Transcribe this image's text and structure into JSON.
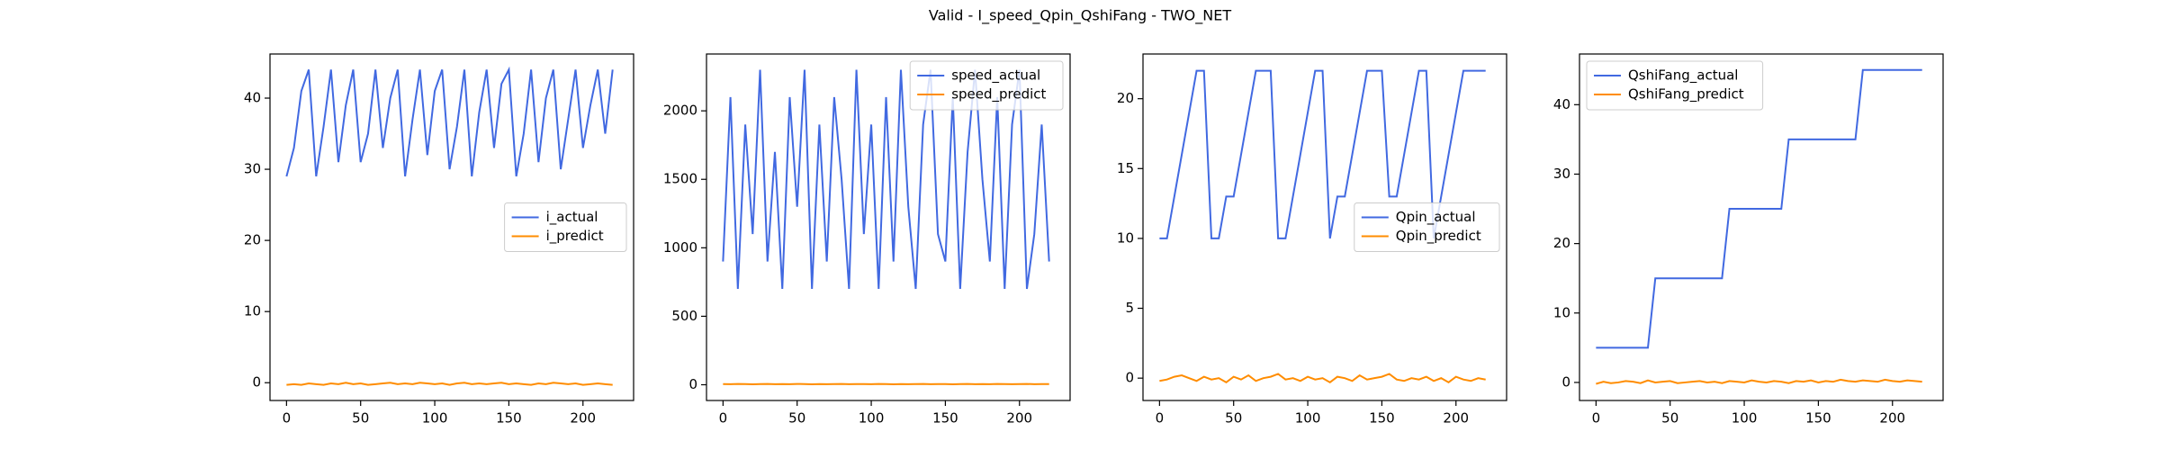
{
  "title": "Valid - I_speed_Qpin_QshiFang - TWO_NET",
  "chart_data": [
    {
      "type": "line",
      "legend": "center right",
      "x": [
        0,
        5,
        10,
        15,
        20,
        25,
        30,
        35,
        40,
        45,
        50,
        55,
        60,
        65,
        70,
        75,
        80,
        85,
        90,
        95,
        100,
        105,
        110,
        115,
        120,
        125,
        130,
        135,
        140,
        145,
        150,
        155,
        160,
        165,
        170,
        175,
        180,
        185,
        190,
        195,
        200,
        205,
        210,
        215,
        220
      ],
      "xlim": [
        -11.15,
        234.15
      ],
      "xticks": [
        0,
        50,
        100,
        150,
        200
      ],
      "ylim": [
        -2.5,
        46.2
      ],
      "yticks": [
        0,
        10,
        20,
        30,
        40
      ],
      "series": [
        {
          "name": "i_actual",
          "color": "#4169e1",
          "values": [
            29,
            33,
            41,
            44,
            29,
            36,
            44,
            31,
            39,
            44,
            31,
            35,
            44,
            33,
            40,
            44,
            29,
            37,
            44,
            32,
            41,
            44,
            30,
            36,
            44,
            29,
            38,
            44,
            33,
            42,
            44,
            29,
            35,
            44,
            31,
            40,
            44,
            30,
            37,
            44,
            33,
            39,
            44,
            35,
            44
          ]
        },
        {
          "name": "i_predict",
          "color": "#ff8c00",
          "values": [
            -0.3,
            -0.2,
            -0.3,
            -0.1,
            -0.2,
            -0.3,
            -0.1,
            -0.2,
            0,
            -0.2,
            -0.1,
            -0.3,
            -0.2,
            -0.1,
            0,
            -0.2,
            -0.1,
            -0.2,
            0,
            -0.1,
            -0.2,
            -0.1,
            -0.3,
            -0.1,
            0,
            -0.2,
            -0.1,
            -0.2,
            -0.1,
            0,
            -0.2,
            -0.1,
            -0.2,
            -0.3,
            -0.1,
            -0.2,
            0,
            -0.1,
            -0.2,
            -0.1,
            -0.3,
            -0.2,
            -0.1,
            -0.2,
            -0.3
          ]
        }
      ]
    },
    {
      "type": "line",
      "legend": "upper right",
      "x": [
        0,
        5,
        10,
        15,
        20,
        25,
        30,
        35,
        40,
        45,
        50,
        55,
        60,
        65,
        70,
        75,
        80,
        85,
        90,
        95,
        100,
        105,
        110,
        115,
        120,
        125,
        130,
        135,
        140,
        145,
        150,
        155,
        160,
        165,
        170,
        175,
        180,
        185,
        190,
        195,
        200,
        205,
        210,
        215,
        220
      ],
      "xlim": [
        -11.15,
        234.15
      ],
      "xticks": [
        0,
        50,
        100,
        150,
        200
      ],
      "ylim": [
        -115,
        2415
      ],
      "yticks": [
        0,
        500,
        1000,
        1500,
        2000
      ],
      "series": [
        {
          "name": "speed_actual",
          "color": "#4169e1",
          "values": [
            900,
            2100,
            700,
            1900,
            1100,
            2300,
            900,
            1700,
            700,
            2100,
            1300,
            2300,
            700,
            1900,
            900,
            2100,
            1500,
            700,
            2300,
            1100,
            1900,
            700,
            2100,
            900,
            2300,
            1300,
            700,
            1900,
            2300,
            1100,
            900,
            2100,
            700,
            1700,
            2300,
            1500,
            900,
            2100,
            700,
            1900,
            2300,
            700,
            1100,
            1900,
            900
          ]
        },
        {
          "name": "speed_predict",
          "color": "#ff8c00",
          "values": [
            5,
            4,
            6,
            5,
            3,
            5,
            6,
            4,
            5,
            4,
            6,
            5,
            3,
            5,
            4,
            5,
            6,
            4,
            5,
            5,
            4,
            6,
            5,
            3,
            5,
            4,
            5,
            6,
            4,
            5,
            5,
            3,
            5,
            6,
            4,
            5,
            4,
            6,
            5,
            4,
            5,
            6,
            4,
            5,
            5
          ]
        }
      ]
    },
    {
      "type": "line",
      "legend": "center right",
      "x": [
        0,
        5,
        10,
        15,
        20,
        25,
        30,
        35,
        40,
        45,
        50,
        55,
        60,
        65,
        70,
        75,
        80,
        85,
        90,
        95,
        100,
        105,
        110,
        115,
        120,
        125,
        130,
        135,
        140,
        145,
        150,
        155,
        160,
        165,
        170,
        175,
        180,
        185,
        190,
        195,
        200,
        205,
        210,
        215,
        220
      ],
      "xlim": [
        -11.15,
        234.15
      ],
      "xticks": [
        0,
        50,
        100,
        150,
        200
      ],
      "ylim": [
        -1.6,
        23.2
      ],
      "yticks": [
        0,
        5,
        10,
        15,
        20
      ],
      "series": [
        {
          "name": "Qpin_actual",
          "color": "#4169e1",
          "values": [
            10,
            10,
            13,
            16,
            19,
            22,
            22,
            10,
            10,
            13,
            13,
            16,
            19,
            22,
            22,
            22,
            10,
            10,
            13,
            16,
            19,
            22,
            22,
            10,
            13,
            13,
            16,
            19,
            22,
            22,
            22,
            13,
            13,
            16,
            19,
            22,
            22,
            10,
            13,
            16,
            19,
            22,
            22,
            22,
            22
          ]
        },
        {
          "name": "Qpin_predict",
          "color": "#ff8c00",
          "values": [
            -0.2,
            -0.1,
            0.1,
            0.2,
            0,
            -0.2,
            0.1,
            -0.1,
            0,
            -0.3,
            0.1,
            -0.1,
            0.2,
            -0.2,
            0,
            0.1,
            0.3,
            -0.1,
            0,
            -0.2,
            0.1,
            -0.1,
            0,
            -0.3,
            0.1,
            0,
            -0.2,
            0.2,
            -0.1,
            0,
            0.1,
            0.3,
            -0.1,
            -0.2,
            0,
            -0.1,
            0.1,
            -0.2,
            0,
            -0.3,
            0.1,
            -0.1,
            -0.2,
            0,
            -0.1
          ]
        }
      ]
    },
    {
      "type": "line",
      "legend": "upper left",
      "x": [
        0,
        5,
        10,
        15,
        20,
        25,
        30,
        35,
        40,
        45,
        50,
        55,
        60,
        65,
        70,
        75,
        80,
        85,
        90,
        95,
        100,
        105,
        110,
        115,
        120,
        125,
        130,
        135,
        140,
        145,
        150,
        155,
        160,
        165,
        170,
        175,
        180,
        185,
        190,
        195,
        200,
        205,
        210,
        215,
        220
      ],
      "xlim": [
        -11.15,
        234.15
      ],
      "xticks": [
        0,
        50,
        100,
        150,
        200
      ],
      "ylim": [
        -2.6,
        47.3
      ],
      "yticks": [
        0,
        10,
        20,
        30,
        40
      ],
      "series": [
        {
          "name": "QshiFang_actual",
          "color": "#4169e1",
          "values": [
            5,
            5,
            5,
            5,
            5,
            5,
            5,
            5,
            15,
            15,
            15,
            15,
            15,
            15,
            15,
            15,
            15,
            15,
            25,
            25,
            25,
            25,
            25,
            25,
            25,
            25,
            35,
            35,
            35,
            35,
            35,
            35,
            35,
            35,
            35,
            35,
            45,
            45,
            45,
            45,
            45,
            45,
            45,
            45,
            45
          ]
        },
        {
          "name": "QshiFang_predict",
          "color": "#ff8c00",
          "values": [
            -0.2,
            0.1,
            -0.1,
            0,
            0.2,
            0.1,
            -0.1,
            0.3,
            0,
            0.1,
            0.2,
            -0.1,
            0,
            0.1,
            0.2,
            0,
            0.1,
            -0.1,
            0.2,
            0.1,
            0,
            0.3,
            0.1,
            0,
            0.2,
            0.1,
            -0.1,
            0.2,
            0.1,
            0.3,
            0,
            0.2,
            0.1,
            0.4,
            0.2,
            0.1,
            0.3,
            0.2,
            0.1,
            0.4,
            0.2,
            0.1,
            0.3,
            0.2,
            0.1
          ]
        }
      ]
    }
  ]
}
